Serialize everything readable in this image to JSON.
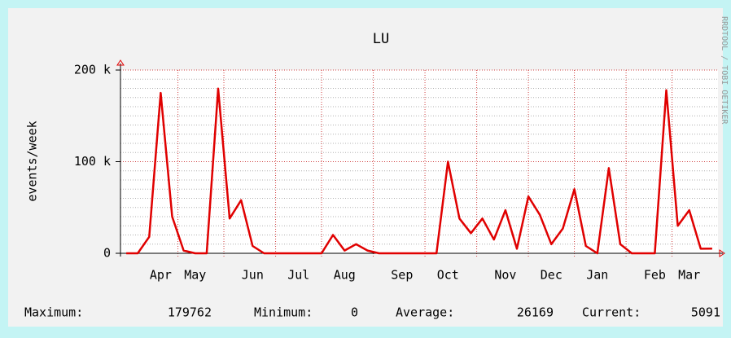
{
  "chart_data": {
    "type": "line",
    "title": "LU",
    "y_label": "events/week",
    "watermark": "RRDTOOL / TOBI OETIKER",
    "categories": [
      null,
      null,
      null,
      "Apr",
      null,
      null,
      "May",
      null,
      null,
      null,
      null,
      "Jun",
      null,
      null,
      null,
      "Jul",
      null,
      null,
      null,
      "Aug",
      null,
      null,
      null,
      null,
      "Sep",
      null,
      null,
      null,
      "Oct",
      null,
      null,
      null,
      null,
      "Nov",
      null,
      null,
      null,
      "Dec",
      null,
      null,
      null,
      "Jan",
      null,
      null,
      null,
      null,
      "Feb",
      null,
      null,
      "Mar",
      null,
      null
    ],
    "series": [
      {
        "name": "events",
        "color": "#e00000",
        "values": [
          0,
          0,
          18000,
          175000,
          40000,
          3000,
          0,
          0,
          179762,
          38000,
          58000,
          8000,
          0,
          0,
          0,
          0,
          0,
          0,
          20000,
          3000,
          10000,
          3000,
          0,
          0,
          0,
          0,
          0,
          0,
          100000,
          38000,
          22000,
          38000,
          15000,
          47000,
          5000,
          62000,
          42000,
          10000,
          27000,
          70000,
          8000,
          0,
          93000,
          10000,
          0,
          0,
          0,
          178000,
          30000,
          47000,
          5000,
          5091
        ]
      }
    ],
    "ylim": [
      0,
      200000
    ],
    "yticks": [
      0,
      {
        "value": 100000,
        "label": "100 k"
      },
      {
        "value": 200000,
        "label": "200 k"
      }
    ],
    "grid": true,
    "stats": [
      {
        "label": "Maximum:",
        "value": 179762
      },
      {
        "label": "Minimum:",
        "value": 0
      },
      {
        "label": "Average:",
        "value": 26169
      },
      {
        "label": "Current:",
        "value": 5091
      }
    ]
  }
}
